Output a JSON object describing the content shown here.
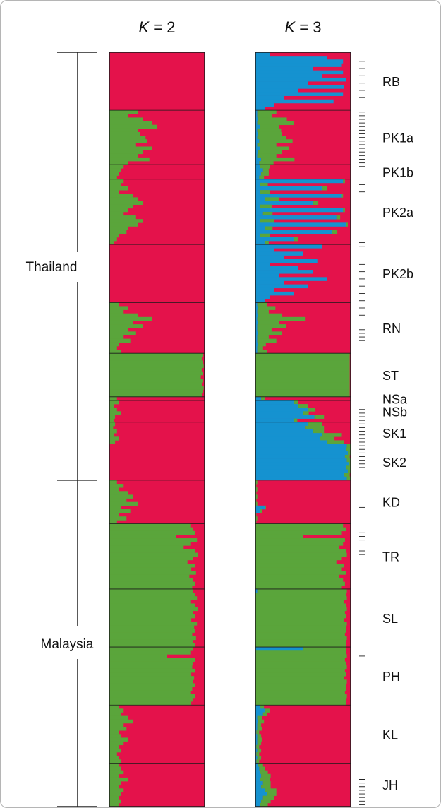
{
  "chart_data": {
    "type": "stacked-bar",
    "panels": [
      {
        "title_var": "K",
        "title_op": "=",
        "title_num": "2",
        "k": 2
      },
      {
        "title_var": "K",
        "title_op": "=",
        "title_num": "3",
        "k": 3
      }
    ],
    "regions": [
      {
        "name": "Thailand"
      },
      {
        "name": "Malaysia"
      }
    ],
    "populations": [
      {
        "label": "RB",
        "n": 16,
        "k2_green": [
          0,
          0,
          0,
          0,
          0,
          0,
          0,
          0,
          0,
          0,
          0,
          0,
          0,
          0,
          0,
          0
        ],
        "k3_blue": [
          0.15,
          0.75,
          0.92,
          0.9,
          0.6,
          0.92,
          0.7,
          0.95,
          0.55,
          0.93,
          0.45,
          0.92,
          0.3,
          0.82,
          0.2,
          0.1
        ],
        "k3_green": [
          0,
          0,
          0,
          0,
          0,
          0,
          0,
          0,
          0,
          0,
          0,
          0,
          0,
          0,
          0,
          0
        ]
      },
      {
        "label": "PK1a",
        "n": 15,
        "k2_green": [
          0.3,
          0.2,
          0.35,
          0.45,
          0.5,
          0.3,
          0.32,
          0.38,
          0.4,
          0.28,
          0.45,
          0.35,
          0.3,
          0.42,
          0.2
        ],
        "k3_blue": [
          0.02,
          0.02,
          0.03,
          0.02,
          0.05,
          0.02,
          0.03,
          0.02,
          0.04,
          0.02,
          0.05,
          0.03,
          0.02,
          0.06,
          0.04
        ],
        "k3_green": [
          0.2,
          0.15,
          0.3,
          0.38,
          0.2,
          0.25,
          0.25,
          0.3,
          0.35,
          0.2,
          0.3,
          0.25,
          0.2,
          0.35,
          0.15
        ]
      },
      {
        "label": "PK1b",
        "n": 4,
        "k2_green": [
          0.15,
          0.12,
          0.1,
          0.08
        ],
        "k3_blue": [
          0.05,
          0.08,
          0.06,
          0.04
        ],
        "k3_green": [
          0.1,
          0.06,
          0.08,
          0.05
        ]
      },
      {
        "label": "PK2a",
        "n": 18,
        "k2_green": [
          0.15,
          0.12,
          0.2,
          0.1,
          0.25,
          0.3,
          0.35,
          0.25,
          0.2,
          0.15,
          0.28,
          0.35,
          0.3,
          0.2,
          0.18,
          0.1,
          0.08,
          0.05
        ],
        "k3_blue": [
          0.92,
          0.05,
          0.7,
          0.05,
          0.9,
          0.1,
          0.6,
          0.05,
          0.92,
          0.08,
          0.85,
          0.05,
          0.95,
          0.1,
          0.8,
          0.05,
          0.4,
          0.1
        ],
        "k3_green": [
          0.02,
          0.08,
          0.05,
          0.1,
          0.02,
          0.15,
          0.06,
          0.12,
          0.02,
          0.1,
          0.04,
          0.15,
          0.02,
          0.08,
          0.06,
          0.1,
          0.05,
          0.04
        ]
      },
      {
        "label": "PK2b",
        "n": 16,
        "k2_green": [
          0,
          0,
          0,
          0,
          0,
          0,
          0,
          0,
          0,
          0,
          0,
          0,
          0,
          0,
          0,
          0
        ],
        "k3_blue": [
          0.7,
          0.2,
          0.5,
          0.3,
          0.65,
          0.15,
          0.45,
          0.6,
          0.25,
          0.75,
          0.3,
          0.55,
          0.2,
          0.4,
          0.15,
          0.1
        ],
        "k3_green": [
          0,
          0,
          0,
          0,
          0,
          0,
          0,
          0,
          0,
          0,
          0,
          0,
          0,
          0,
          0,
          0
        ]
      },
      {
        "label": "RN",
        "n": 14,
        "k2_green": [
          0.1,
          0.2,
          0.15,
          0.3,
          0.45,
          0.25,
          0.35,
          0.2,
          0.28,
          0.15,
          0.22,
          0.1,
          0.08,
          0.12
        ],
        "k3_blue": [
          0.02,
          0.03,
          0.02,
          0.03,
          0.02,
          0.03,
          0.02,
          0.02,
          0.03,
          0.02,
          0.02,
          0.03,
          0.02,
          0.02
        ],
        "k3_green": [
          0.1,
          0.18,
          0.12,
          0.25,
          0.5,
          0.22,
          0.3,
          0.15,
          0.25,
          0.12,
          0.2,
          0.08,
          0.06,
          0.1
        ]
      },
      {
        "label": "ST",
        "n": 12,
        "k2_green": [
          0.98,
          0.97,
          0.98,
          0.99,
          0.97,
          0.98,
          0.96,
          0.98,
          0.97,
          0.99,
          0.98,
          0.97
        ],
        "k3_blue": [
          0,
          0,
          0,
          0,
          0,
          0,
          0,
          0,
          0,
          0,
          0,
          0
        ],
        "k3_green": [
          0.99,
          0.99,
          0.99,
          0.99,
          0.99,
          0.99,
          0.99,
          0.99,
          0.99,
          0.99,
          0.99,
          0.99
        ]
      },
      {
        "label": "NSa",
        "n": 1,
        "k2_green": [
          0.08
        ],
        "k3_blue": [
          0.06
        ],
        "k3_green": [
          0.04
        ]
      },
      {
        "label": "NSb",
        "n": 6,
        "k2_green": [
          0.1,
          0.05,
          0.08,
          0.12,
          0.06,
          0.05
        ],
        "k3_blue": [
          0.4,
          0.45,
          0.55,
          0.5,
          0.62,
          0.4
        ],
        "k3_green": [
          0.05,
          0.1,
          0.08,
          0.06,
          0.1,
          0.04
        ]
      },
      {
        "label": "SK1",
        "n": 6,
        "k2_green": [
          0.06,
          0.04,
          0.08,
          0.05,
          0.1,
          0.06
        ],
        "k3_blue": [
          0.55,
          0.52,
          0.6,
          0.7,
          0.68,
          0.75
        ],
        "k3_green": [
          0.15,
          0.2,
          0.12,
          0.2,
          0.15,
          0.18
        ]
      },
      {
        "label": "SK2",
        "n": 10,
        "k2_green": [
          0,
          0,
          0,
          0,
          0,
          0,
          0,
          0,
          0,
          0
        ],
        "k3_blue": [
          0.96,
          0.95,
          0.97,
          0.94,
          0.96,
          0.98,
          0.95,
          0.97,
          0.93,
          0.96
        ],
        "k3_green": [
          0.04,
          0.05,
          0.03,
          0.05,
          0.04,
          0.02,
          0.05,
          0.03,
          0.06,
          0.04
        ]
      },
      {
        "label": "KD",
        "n": 12,
        "k2_green": [
          0.08,
          0.15,
          0.1,
          0.2,
          0.25,
          0.18,
          0.3,
          0.12,
          0.22,
          0.1,
          0.18,
          0.08
        ],
        "k3_blue": [
          0,
          0,
          0,
          0,
          0,
          0,
          0,
          0.1,
          0.05,
          0,
          0,
          0
        ],
        "k3_green": [
          0.02,
          0.01,
          0.02,
          0.01,
          0.02,
          0.01,
          0.02,
          0.01,
          0.02,
          0.01,
          0.02,
          0.01
        ]
      },
      {
        "label": "TR",
        "n": 18,
        "k2_green": [
          0.85,
          0.88,
          0.9,
          0.7,
          0.92,
          0.85,
          0.78,
          0.9,
          0.93,
          0.88,
          0.82,
          0.9,
          0.86,
          0.91,
          0.84,
          0.88,
          0.9,
          0.87
        ],
        "k3_blue": [
          0,
          0,
          0,
          0,
          0,
          0,
          0,
          0,
          0,
          0,
          0,
          0,
          0,
          0,
          0,
          0,
          0,
          0
        ],
        "k3_green": [
          0.92,
          0.95,
          0.9,
          0.5,
          0.94,
          0.92,
          0.88,
          0.95,
          0.96,
          0.9,
          0.85,
          0.93,
          0.9,
          0.95,
          0.88,
          0.92,
          0.94,
          0.9
        ]
      },
      {
        "label": "SL",
        "n": 16,
        "k2_green": [
          0.88,
          0.9,
          0.92,
          0.85,
          0.9,
          0.93,
          0.88,
          0.9,
          0.86,
          0.92,
          0.89,
          0.9,
          0.87,
          0.91,
          0.88,
          0.9
        ],
        "k3_blue": [
          0.02,
          0,
          0,
          0,
          0,
          0,
          0,
          0,
          0,
          0,
          0,
          0,
          0,
          0,
          0,
          0
        ],
        "k3_green": [
          0.94,
          0.95,
          0.96,
          0.93,
          0.95,
          0.96,
          0.94,
          0.95,
          0.93,
          0.96,
          0.95,
          0.95,
          0.94,
          0.96,
          0.95,
          0.95
        ]
      },
      {
        "label": "PH",
        "n": 16,
        "k2_green": [
          0.88,
          0.85,
          0.6,
          0.9,
          0.88,
          0.87,
          0.9,
          0.86,
          0.89,
          0.88,
          0.9,
          0.87,
          0.85,
          0.9,
          0.88,
          0.86
        ],
        "k3_blue": [
          0.5,
          0,
          0,
          0,
          0,
          0,
          0,
          0,
          0,
          0,
          0,
          0,
          0,
          0,
          0,
          0
        ],
        "k3_green": [
          0.45,
          0.95,
          0.96,
          0.94,
          0.95,
          0.96,
          0.94,
          0.95,
          0.93,
          0.96,
          0.95,
          0.95,
          0.94,
          0.96,
          0.95,
          0.95
        ]
      },
      {
        "label": "KL",
        "n": 16,
        "k2_green": [
          0.1,
          0.15,
          0.12,
          0.2,
          0.25,
          0.15,
          0.18,
          0.1,
          0.12,
          0.2,
          0.15,
          0.1,
          0.12,
          0.08,
          0.1,
          0.12
        ],
        "k3_blue": [
          0.05,
          0.1,
          0.08,
          0.02,
          0.03,
          0.02,
          0.02,
          0.01,
          0.02,
          0.02,
          0.02,
          0.01,
          0.02,
          0.01,
          0.02,
          0.01
        ],
        "k3_green": [
          0.04,
          0.05,
          0.04,
          0.05,
          0.06,
          0.04,
          0.05,
          0.03,
          0.04,
          0.05,
          0.04,
          0.03,
          0.04,
          0.03,
          0.04,
          0.03
        ]
      },
      {
        "label": "JH",
        "n": 12,
        "k2_green": [
          0.1,
          0.12,
          0.15,
          0.1,
          0.2,
          0.12,
          0.1,
          0.15,
          0.12,
          0.1,
          0.12,
          0.1
        ],
        "k3_blue": [
          0.03,
          0.04,
          0.05,
          0.06,
          0.05,
          0.08,
          0.06,
          0.1,
          0.12,
          0.08,
          0.06,
          0.05
        ],
        "k3_green": [
          0.05,
          0.06,
          0.08,
          0.1,
          0.1,
          0.08,
          0.1,
          0.12,
          0.1,
          0.12,
          0.1,
          0.08
        ]
      }
    ],
    "colors": {
      "red": "#e4124b",
      "green": "#5aa53b",
      "blue": "#1592d0"
    }
  }
}
